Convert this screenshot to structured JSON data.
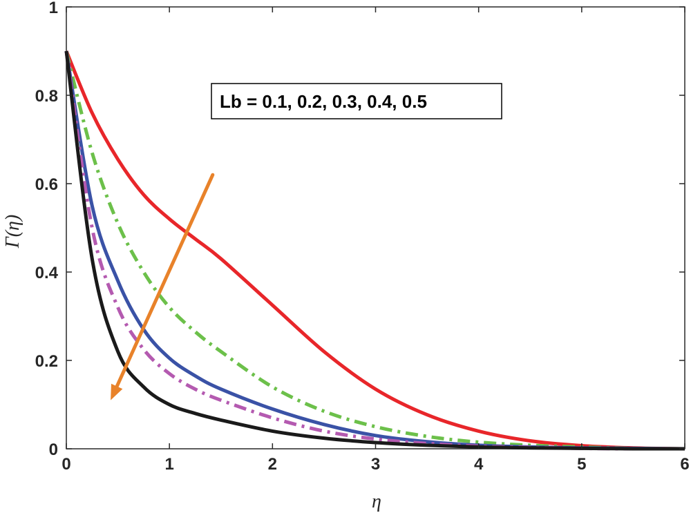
{
  "chart_data": {
    "type": "line",
    "xlabel": "η",
    "ylabel": "Γ(η)",
    "xlim": [
      0,
      6
    ],
    "ylim": [
      0,
      1
    ],
    "xticks": [
      "0",
      "1",
      "2",
      "3",
      "4",
      "5",
      "6"
    ],
    "yticks": [
      "0",
      "0.2",
      "0.4",
      "0.6",
      "0.8",
      "1"
    ],
    "grid": false,
    "annotation": "Lb = 0.1, 0.2, 0.3, 0.4, 0.5",
    "arrow": {
      "from": [
        1.42,
        0.62
      ],
      "to": [
        0.43,
        0.11
      ],
      "color": "#e8822a"
    },
    "series": [
      {
        "color": "#e8262a",
        "style": "solid",
        "x": [
          0,
          0.25,
          0.5,
          0.75,
          1,
          1.25,
          1.5,
          2,
          2.5,
          3,
          3.5,
          4,
          4.5,
          5,
          5.5,
          6
        ],
        "values": [
          0.9,
          0.76,
          0.655,
          0.575,
          0.52,
          0.475,
          0.43,
          0.325,
          0.22,
          0.135,
          0.077,
          0.04,
          0.018,
          0.007,
          0.002,
          0
        ]
      },
      {
        "color": "#6cc04a",
        "style": "dashdot",
        "x": [
          0,
          0.25,
          0.5,
          0.75,
          1,
          1.25,
          1.5,
          2,
          2.5,
          3,
          3.5,
          4,
          4.5,
          5,
          5.5,
          6
        ],
        "values": [
          0.9,
          0.67,
          0.51,
          0.4,
          0.32,
          0.265,
          0.22,
          0.14,
          0.085,
          0.05,
          0.028,
          0.015,
          0.008,
          0.004,
          0.001,
          0
        ]
      },
      {
        "color": "#3a52a6",
        "style": "solid",
        "x": [
          0,
          0.25,
          0.5,
          0.75,
          1,
          1.25,
          1.5,
          2,
          2.5,
          3,
          3.5,
          4,
          4.5,
          5,
          5.5,
          6
        ],
        "values": [
          0.9,
          0.55,
          0.38,
          0.27,
          0.205,
          0.165,
          0.135,
          0.09,
          0.055,
          0.03,
          0.016,
          0.008,
          0.004,
          0.002,
          0.001,
          0
        ]
      },
      {
        "color": "#b45ab0",
        "style": "dashdot",
        "x": [
          0,
          0.25,
          0.5,
          0.75,
          1,
          1.25,
          1.5,
          2,
          2.5,
          3,
          3.5,
          4,
          4.5,
          5,
          5.5,
          6
        ],
        "values": [
          0.9,
          0.5,
          0.32,
          0.225,
          0.17,
          0.135,
          0.11,
          0.07,
          0.04,
          0.022,
          0.012,
          0.006,
          0.003,
          0.001,
          0,
          0
        ]
      },
      {
        "color": "#1a1a1a",
        "style": "solid",
        "x": [
          0,
          0.25,
          0.5,
          0.75,
          1,
          1.25,
          1.5,
          2,
          2.5,
          3,
          3.5,
          4,
          4.5,
          5,
          5.5,
          6
        ],
        "values": [
          0.9,
          0.43,
          0.22,
          0.14,
          0.1,
          0.08,
          0.065,
          0.04,
          0.024,
          0.014,
          0.008,
          0.004,
          0.002,
          0.001,
          0,
          0
        ]
      }
    ]
  }
}
